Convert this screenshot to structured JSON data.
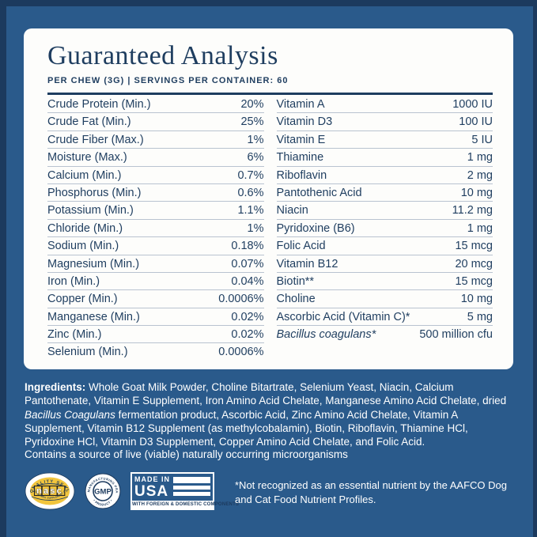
{
  "header": {
    "title": "Guaranteed Analysis",
    "subtitle": "PER CHEW (3G) | SERVINGS PER CONTAINER: 60"
  },
  "table": {
    "left": [
      {
        "label": "Crude Protein (Min.)",
        "value": "20%"
      },
      {
        "label": "Crude Fat (Min.)",
        "value": "25%"
      },
      {
        "label": "Crude Fiber (Max.)",
        "value": "1%"
      },
      {
        "label": "Moisture (Max.)",
        "value": "6%"
      },
      {
        "label": "Calcium (Min.)",
        "value": "0.7%"
      },
      {
        "label": "Phosphorus (Min.)",
        "value": "0.6%"
      },
      {
        "label": "Potassium (Min.)",
        "value": "1.1%"
      },
      {
        "label": "Chloride (Min.)",
        "value": "1%"
      },
      {
        "label": "Sodium (Min.)",
        "value": "0.18%"
      },
      {
        "label": "Magnesium (Min.)",
        "value": "0.07%"
      },
      {
        "label": "Iron (Min.)",
        "value": "0.04%"
      },
      {
        "label": "Copper (Min.)",
        "value": "0.0006%"
      },
      {
        "label": "Manganese (Min.)",
        "value": "0.02%"
      },
      {
        "label": "Zinc (Min.)",
        "value": "0.02%"
      },
      {
        "label": "Selenium (Min.)",
        "value": "0.0006%"
      }
    ],
    "right": [
      {
        "label": "Vitamin A",
        "value": "1000 IU"
      },
      {
        "label": "Vitamin D3",
        "value": "100 IU"
      },
      {
        "label": "Vitamin E",
        "value": "5 IU"
      },
      {
        "label": "Thiamine",
        "value": "1 mg"
      },
      {
        "label": "Riboflavin",
        "value": "2 mg"
      },
      {
        "label": "Pantothenic Acid",
        "value": "10 mg"
      },
      {
        "label": "Niacin",
        "value": "11.2 mg"
      },
      {
        "label": "Pyridoxine (B6)",
        "value": "1 mg"
      },
      {
        "label": "Folic Acid",
        "value": "15 mcg"
      },
      {
        "label": "Vitamin B12",
        "value": "20 mcg"
      },
      {
        "label": "Biotin**",
        "value": "15 mcg"
      },
      {
        "label": "Choline",
        "value": "10 mg"
      },
      {
        "label": "Ascorbic Acid (Vitamin C)*",
        "value": "5 mg"
      },
      {
        "label": "Bacillus coagulans*",
        "value": "500 million cfu",
        "italic": true
      }
    ]
  },
  "ingredients": {
    "heading": "Ingredients: ",
    "part1": "Whole Goat Milk Powder, Choline Bitartrate, Selenium Yeast, Niacin, Calcium Pantothenate, Vitamin E Supplement, Iron Amino Acid Chelate, Manganese Amino Acid Chelate, dried ",
    "italic": "Bacillus Coagulans",
    "part2": " fermentation product, Ascorbic Acid, Zinc Amino Acid Chelate, Vitamin A Supplement, Vitamin B12 Supplement (as methylcobalamin), Biotin, Riboflavin, Thiamine HCl, Pyridoxine HCl, Vitamin D3 Supplement, Copper Amino Acid Chelate, and Folic Acid."
  },
  "contains_note": "Contains a source of live (viable) naturally occurring microorganisms",
  "badges": {
    "nasc": {
      "arc_top": "QUALITY SEAL",
      "center": "nasc",
      "arc_bottom": "NATIONAL ANIMAL SUPPLEMENT COUNCIL"
    },
    "gmp": {
      "arc_top": "GOOD MANUFACTURING PRACTICE",
      "arc_bottom": "• PRODUCT •",
      "center": "GMP"
    },
    "usa": {
      "line1": "MADE IN",
      "line2": "USA",
      "bottom": "WITH FOREIGN & DOMESTIC COMPONENTS"
    }
  },
  "disclaimer": "*Not recognized as an essential nutrient by the AAFCO Dog and Cat Food Nutrient Profiles.",
  "colors": {
    "background_blue": "#2a5a8b",
    "frame_navy": "#1c3a5e",
    "card_white": "#fdfdfb",
    "text_navy": "#1e3d5f",
    "row_line": "#b9c3d0",
    "seal_yellow": "#f2c53d",
    "text_white": "#ffffff"
  }
}
